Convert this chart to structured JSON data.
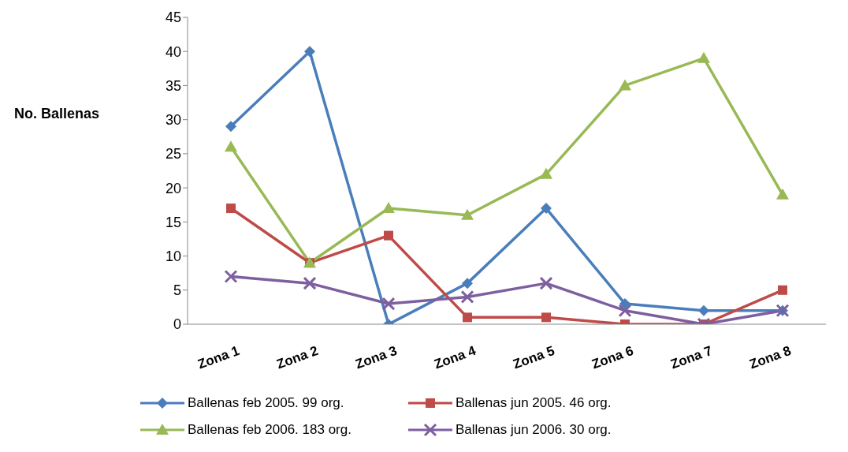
{
  "chart_data": {
    "type": "line",
    "ylabel": "No. Ballenas",
    "categories": [
      "Zona 1",
      "Zona 2",
      "Zona 3",
      "Zona 4",
      "Zona 5",
      "Zona 6",
      "Zona 7",
      "Zona 8"
    ],
    "series": [
      {
        "name": "Ballenas feb 2005. 99 org.",
        "color": "#4a7ebb",
        "marker": "diamond",
        "values": [
          29,
          40,
          0,
          6,
          17,
          3,
          2,
          2
        ]
      },
      {
        "name": "Ballenas jun 2005. 46 org.",
        "color": "#be4b48",
        "marker": "square",
        "values": [
          17,
          9,
          13,
          1,
          1,
          0,
          0,
          5
        ]
      },
      {
        "name": "Ballenas feb 2006. 183 org.",
        "color": "#98b954",
        "marker": "triangle",
        "values": [
          26,
          9,
          17,
          16,
          22,
          35,
          39,
          19
        ]
      },
      {
        "name": "Ballenas jun 2006. 30 org.",
        "color": "#7d5fa0",
        "marker": "cross",
        "values": [
          7,
          6,
          3,
          4,
          6,
          2,
          0,
          2
        ]
      }
    ],
    "ylim": [
      0,
      45
    ],
    "yticks": [
      0,
      5,
      10,
      15,
      20,
      25,
      30,
      35,
      40,
      45
    ],
    "grid": false,
    "legend": "bottom",
    "line_style": "solid"
  }
}
